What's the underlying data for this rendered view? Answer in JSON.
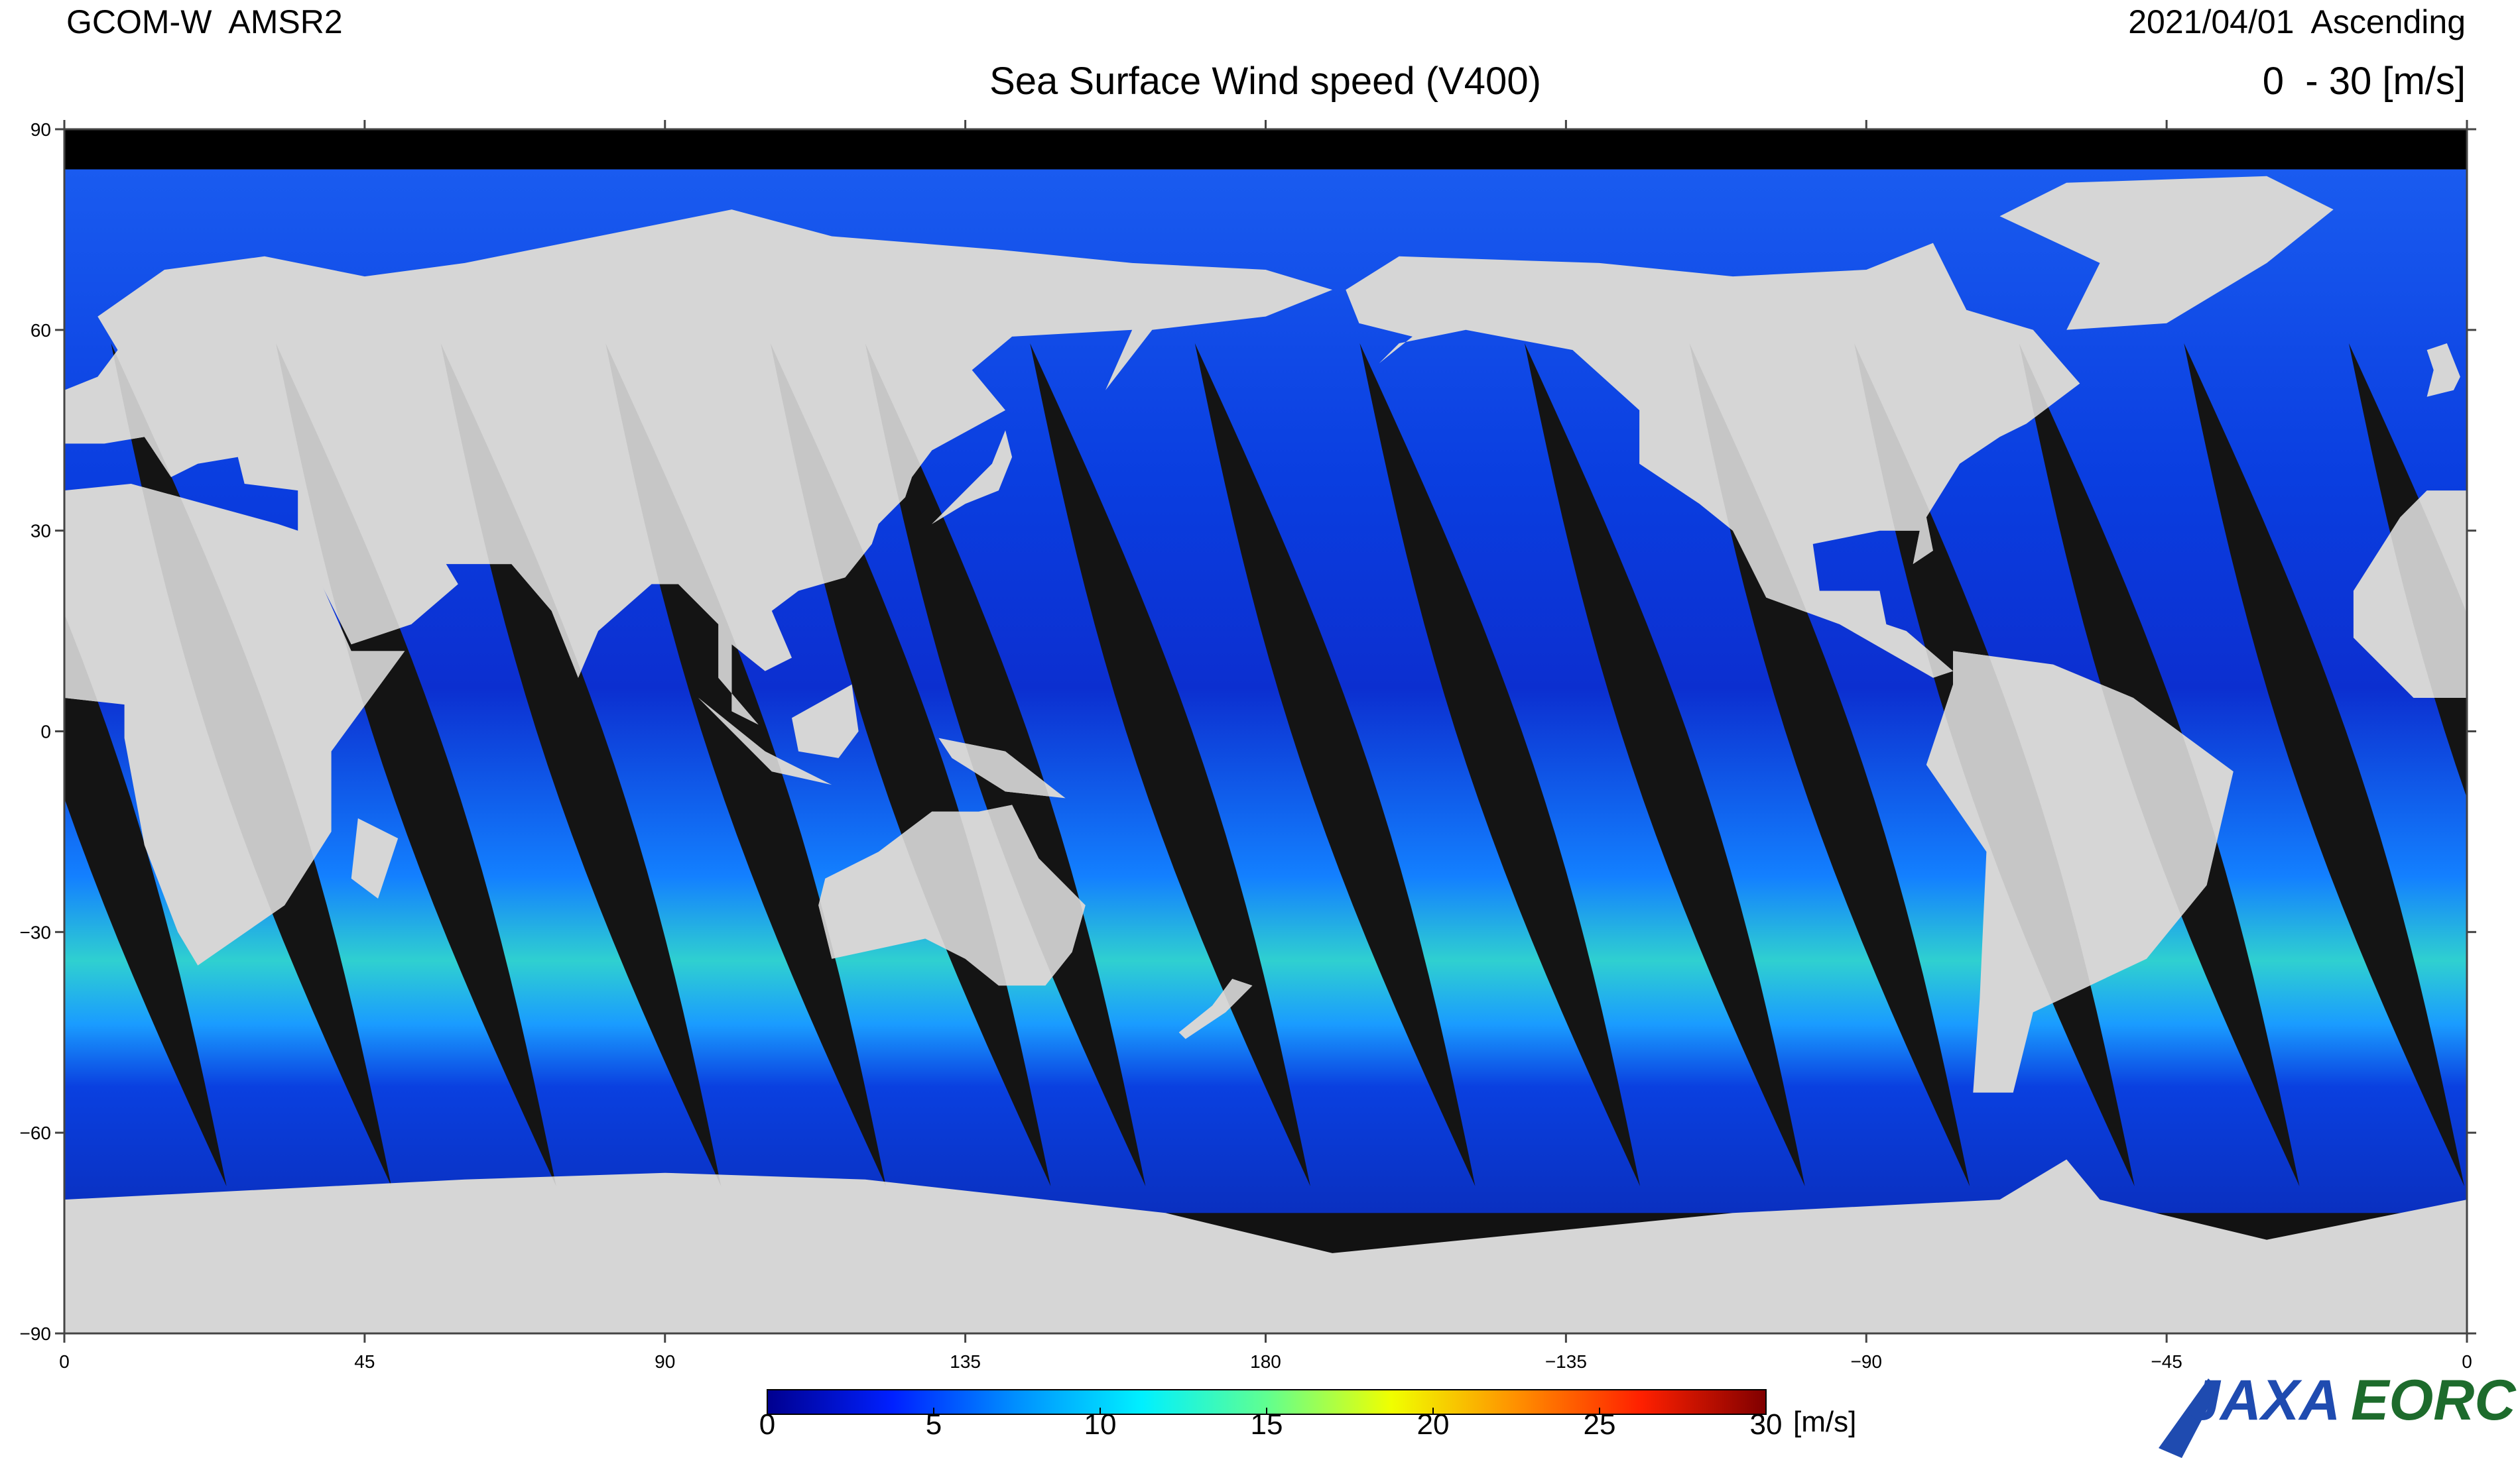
{
  "header": {
    "satellite": "GCOM-W  AMSR2",
    "date": "2021/04/01  Ascending",
    "title": "Sea Surface Wind speed (V400)",
    "range": "0  - 30 [m/s]"
  },
  "map": {
    "lat_range": [
      -90,
      90
    ],
    "lon_range": [
      0,
      360
    ],
    "lat_ticks": [
      90,
      60,
      30,
      0,
      {
        "value": -30,
        "label": "−30"
      },
      {
        "value": -60,
        "label": "−60"
      },
      {
        "value": -90,
        "label": "−90"
      }
    ],
    "lon_ticks": [
      0,
      45,
      90,
      135,
      180,
      {
        "value": -135,
        "label": "−135"
      },
      {
        "value": -90,
        "label": "−90"
      },
      {
        "value": -45,
        "label": "−45"
      },
      0
    ]
  },
  "colorbar": {
    "range": [
      0,
      30
    ],
    "ticks": [
      0,
      5,
      10,
      15,
      20,
      25,
      30
    ],
    "unit": "[m/s]",
    "colors": [
      "#00008f",
      "#0020ff",
      "#0090ff",
      "#00f0ff",
      "#60ff90",
      "#f0ff00",
      "#ff9000",
      "#ff2000",
      "#800000"
    ]
  },
  "logo": {
    "agency": "JAXA",
    "center": "EORC"
  }
}
